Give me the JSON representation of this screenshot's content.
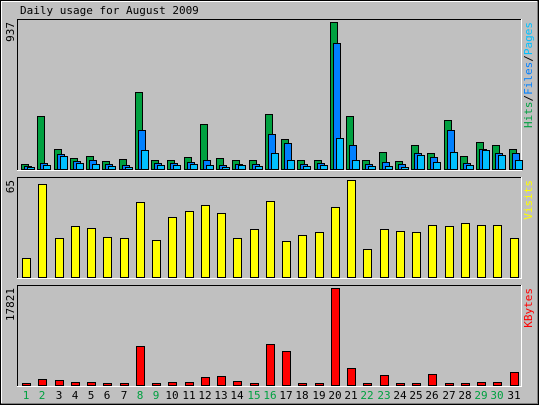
{
  "chart_data": {
    "type": "bar",
    "title": "Daily usage for August 2009",
    "days": [
      "1",
      "2",
      "3",
      "4",
      "5",
      "6",
      "7",
      "8",
      "9",
      "10",
      "11",
      "12",
      "13",
      "14",
      "15",
      "16",
      "17",
      "18",
      "19",
      "20",
      "21",
      "22",
      "23",
      "24",
      "25",
      "26",
      "27",
      "28",
      "29",
      "30",
      "31"
    ],
    "weekend_days": [
      "1",
      "2",
      "8",
      "9",
      "15",
      "16",
      "22",
      "23",
      "29",
      "30"
    ],
    "colors": {
      "hits": "#00a040",
      "files": "#0080ff",
      "pages": "#00c0ff",
      "visits": "#ffff00",
      "kbytes": "#ff0000",
      "weekday_label": "#000000",
      "weekend_label": "#00a040"
    },
    "panels": [
      {
        "id": "usage",
        "max_label": "937",
        "ymax": 937,
        "legend": [
          {
            "text": "Hits",
            "color": "#00a040"
          },
          {
            "text": "/",
            "color": "#000000"
          },
          {
            "text": "Files",
            "color": "#0080ff"
          },
          {
            "text": "/",
            "color": "#000000"
          },
          {
            "text": "Pages",
            "color": "#00c0ff"
          }
        ],
        "series": [
          {
            "name": "Hits",
            "values": [
              30,
              340,
              130,
              70,
              80,
              50,
              65,
              490,
              55,
              60,
              75,
              290,
              70,
              55,
              60,
              350,
              190,
              55,
              60,
              937,
              340,
              55,
              110,
              50,
              155,
              105,
              310,
              85,
              175,
              150,
              130
            ]
          },
          {
            "name": "Files",
            "values": [
              20,
              40,
              95,
              50,
              55,
              30,
              25,
              250,
              40,
              40,
              45,
              55,
              25,
              35,
              30,
              225,
              165,
              30,
              40,
              800,
              155,
              35,
              45,
              30,
              105,
              75,
              250,
              40,
              130,
              100,
              100
            ]
          },
          {
            "name": "Pages",
            "values": [
              10,
              25,
              80,
              40,
              30,
              20,
              15,
              120,
              25,
              25,
              35,
              25,
              15,
              25,
              20,
              105,
              60,
              20,
              25,
              200,
              60,
              20,
              20,
              10,
              90,
              45,
              110,
              25,
              120,
              90,
              60
            ]
          }
        ]
      },
      {
        "id": "visits",
        "max_label": "65",
        "ymax": 65,
        "legend": [
          {
            "text": "Visits",
            "color": "#ffff00"
          }
        ],
        "series": [
          {
            "name": "Visits",
            "values": [
              13,
              62,
              26,
              34,
              33,
              27,
              26,
              50,
              25,
              40,
              44,
              48,
              43,
              26,
              32,
              51,
              24,
              28,
              30,
              47,
              65,
              19,
              32,
              31,
              30,
              35,
              34,
              36,
              35,
              35,
              26
            ]
          }
        ]
      },
      {
        "id": "kbytes",
        "max_label": "17821",
        "ymax": 17821,
        "legend": [
          {
            "text": "KBytes",
            "color": "#ff0000"
          }
        ],
        "series": [
          {
            "name": "KBytes",
            "values": [
              400,
              1100,
              900,
              500,
              600,
              300,
              300,
              7200,
              300,
              600,
              600,
              1500,
              1700,
              700,
              400,
              7500,
              6300,
              400,
              400,
              17821,
              3100,
              400,
              1900,
              400,
              300,
              2000,
              400,
              400,
              600,
              500,
              2300
            ]
          }
        ]
      }
    ]
  }
}
